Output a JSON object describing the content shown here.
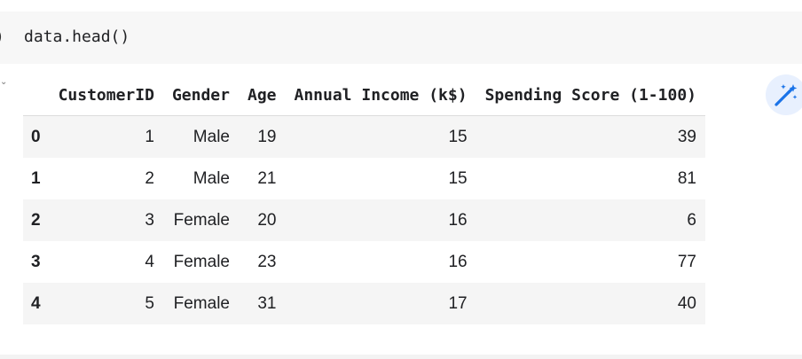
{
  "code_cell": {
    "run_indicator": ")",
    "code": "data.head()"
  },
  "table": {
    "columns": [
      "CustomerID",
      "Gender",
      "Age",
      "Annual Income (k$)",
      "Spending Score (1-100)"
    ],
    "rows": [
      {
        "index": "0",
        "cells": [
          "1",
          "Male",
          "19",
          "15",
          "39"
        ]
      },
      {
        "index": "1",
        "cells": [
          "2",
          "Male",
          "21",
          "15",
          "81"
        ]
      },
      {
        "index": "2",
        "cells": [
          "3",
          "Female",
          "20",
          "16",
          "6"
        ]
      },
      {
        "index": "3",
        "cells": [
          "4",
          "Female",
          "23",
          "16",
          "77"
        ]
      },
      {
        "index": "4",
        "cells": [
          "5",
          "Female",
          "31",
          "17",
          "40"
        ]
      }
    ]
  },
  "icons": {
    "magic": "magic-wand-icon"
  },
  "colors": {
    "magic_bg": "#e8f0fe",
    "magic_fg": "#1a73e8",
    "row_stripe": "#f5f5f5",
    "cell_bg": "#f7f7f7"
  }
}
